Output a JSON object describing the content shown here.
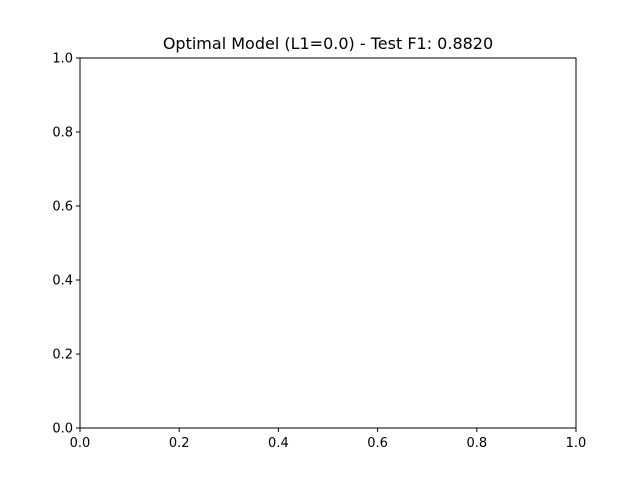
{
  "chart_data": {
    "type": "scatter",
    "title": "Optimal Model (L1=0.0) - Test F1: 0.8820",
    "xlabel": "",
    "ylabel": "",
    "xlim": [
      0.0,
      1.0
    ],
    "ylim": [
      0.0,
      1.0
    ],
    "x_ticks": [
      "0.0",
      "0.2",
      "0.4",
      "0.6",
      "0.8",
      "1.0"
    ],
    "y_ticks": [
      "0.0",
      "0.2",
      "0.4",
      "0.6",
      "0.8",
      "1.0"
    ],
    "grid": false,
    "legend": "none",
    "series": []
  }
}
